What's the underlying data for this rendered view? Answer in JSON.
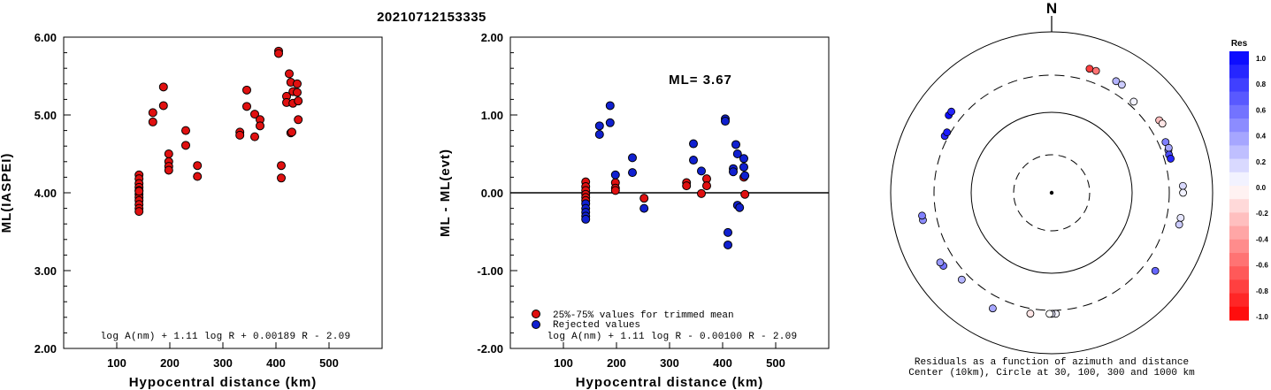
{
  "title": "20210712153335",
  "chart_data": [
    {
      "type": "scatter",
      "panel": "left",
      "ylabel": "ML(IASPEI)",
      "xlabel": "Hypocentral distance (km)",
      "xlim": [
        0,
        600
      ],
      "ylim": [
        2.0,
        6.0
      ],
      "xticks": [
        "100",
        "200",
        "300",
        "400",
        "500"
      ],
      "yticks": [
        "2.00",
        "3.00",
        "4.00",
        "5.00",
        "6.00"
      ],
      "formula": "log A(nm) + 1.11 log R + 0.00189 R - 2.09",
      "series": [
        {
          "color": "#e01010",
          "points": [
            [
              142,
              4.23
            ],
            [
              142,
              4.18
            ],
            [
              142,
              4.12
            ],
            [
              142,
              4.07
            ],
            [
              142,
              4.03
            ],
            [
              142,
              3.98
            ],
            [
              142,
              3.94
            ],
            [
              142,
              3.9
            ],
            [
              142,
              3.85
            ],
            [
              142,
              3.8
            ],
            [
              142,
              3.76
            ],
            [
              142,
              4.02
            ],
            [
              168,
              5.03
            ],
            [
              168,
              4.91
            ],
            [
              188,
              5.36
            ],
            [
              188,
              5.12
            ],
            [
              198,
              4.5
            ],
            [
              198,
              4.4
            ],
            [
              198,
              4.34
            ],
            [
              198,
              4.29
            ],
            [
              230,
              4.8
            ],
            [
              230,
              4.61
            ],
            [
              252,
              4.35
            ],
            [
              252,
              4.21
            ],
            [
              332,
              4.78
            ],
            [
              332,
              4.74
            ],
            [
              345,
              5.32
            ],
            [
              345,
              5.11
            ],
            [
              360,
              5.01
            ],
            [
              360,
              4.72
            ],
            [
              370,
              4.94
            ],
            [
              370,
              4.86
            ],
            [
              405,
              5.82
            ],
            [
              405,
              5.79
            ],
            [
              410,
              4.35
            ],
            [
              410,
              4.19
            ],
            [
              420,
              5.24
            ],
            [
              420,
              5.16
            ],
            [
              425,
              5.53
            ],
            [
              428,
              5.42
            ],
            [
              428,
              4.77
            ],
            [
              432,
              5.3
            ],
            [
              432,
              5.15
            ],
            [
              440,
              5.4
            ],
            [
              440,
              5.29
            ],
            [
              442,
              5.18
            ],
            [
              442,
              4.94
            ],
            [
              430,
              4.78
            ]
          ]
        }
      ]
    },
    {
      "type": "scatter",
      "panel": "middle",
      "ylabel": "ML - ML(evt)",
      "xlabel": "Hypocentral distance (km)",
      "xlim": [
        0,
        600
      ],
      "ylim": [
        -2.0,
        2.0
      ],
      "xticks": [
        "100",
        "200",
        "300",
        "400",
        "500"
      ],
      "yticks": [
        "-2.00",
        "-1.00",
        "0.00",
        "1.00",
        "2.00"
      ],
      "annotation": "ML= 3.67",
      "formula": "log A(nm) + 1.11 log R - 0.00100 R - 2.09",
      "legend": [
        "25%-75% values for trimmed mean",
        "Rejected values"
      ],
      "series": [
        {
          "name": "25%-75% values for trimmed mean",
          "color": "#e01010",
          "points": [
            [
              142,
              0.14
            ],
            [
              142,
              0.08
            ],
            [
              142,
              0.03
            ],
            [
              142,
              -0.02
            ],
            [
              142,
              -0.06
            ],
            [
              142,
              -0.1
            ],
            [
              198,
              0.13
            ],
            [
              198,
              0.06
            ],
            [
              198,
              0.03
            ],
            [
              252,
              -0.07
            ],
            [
              332,
              0.13
            ],
            [
              332,
              0.09
            ],
            [
              360,
              -0.01
            ],
            [
              370,
              0.18
            ],
            [
              370,
              0.09
            ],
            [
              440,
              0.2
            ],
            [
              442,
              -0.02
            ]
          ]
        },
        {
          "name": "Rejected values",
          "color": "#1020d0",
          "points": [
            [
              142,
              -0.14
            ],
            [
              142,
              -0.2
            ],
            [
              142,
              -0.25
            ],
            [
              142,
              -0.3
            ],
            [
              142,
              -0.34
            ],
            [
              168,
              0.86
            ],
            [
              168,
              0.75
            ],
            [
              188,
              1.12
            ],
            [
              188,
              0.9
            ],
            [
              198,
              0.23
            ],
            [
              230,
              0.45
            ],
            [
              230,
              0.26
            ],
            [
              252,
              -0.2
            ],
            [
              345,
              0.63
            ],
            [
              345,
              0.42
            ],
            [
              360,
              0.28
            ],
            [
              405,
              0.95
            ],
            [
              405,
              0.92
            ],
            [
              410,
              -0.51
            ],
            [
              410,
              -0.67
            ],
            [
              420,
              0.31
            ],
            [
              420,
              0.27
            ],
            [
              425,
              0.62
            ],
            [
              428,
              0.5
            ],
            [
              428,
              -0.16
            ],
            [
              432,
              -0.19
            ],
            [
              440,
              0.44
            ],
            [
              440,
              0.33
            ],
            [
              442,
              0.22
            ]
          ]
        }
      ]
    },
    {
      "type": "scatter",
      "panel": "polar",
      "north_label": "N",
      "caption_line1": "Residuals as a function of azimuth and distance",
      "caption_line2": "Center (10km), Circle at 30, 100, 300 and 1000 km",
      "colorbar": {
        "title": "Res",
        "labels": [
          "1.0",
          "0.8",
          "0.6",
          "0.4",
          "0.2",
          "0.0",
          "-0.2",
          "-0.4",
          "-0.6",
          "-0.8",
          "-1.0"
        ],
        "stops": [
          "#0000ff",
          "#3040ff",
          "#5a6aff",
          "#8590ff",
          "#b3bbff",
          "#ffffff",
          "#ffc8c8",
          "#ffa0a0",
          "#ff7070",
          "#ff4040",
          "#ff0000"
        ]
      },
      "points": [
        {
          "az": 17,
          "dist": 420,
          "res": -0.75
        },
        {
          "az": 20,
          "dist": 420,
          "res": -0.55
        },
        {
          "az": 30,
          "dist": 410,
          "res": 0.3
        },
        {
          "az": 33,
          "dist": 410,
          "res": 0.2
        },
        {
          "az": 42,
          "dist": 345,
          "res": 0.05
        },
        {
          "az": 56,
          "dist": 420,
          "res": -0.25
        },
        {
          "az": 58,
          "dist": 430,
          "res": -0.1
        },
        {
          "az": 66,
          "dist": 365,
          "res": 0.5
        },
        {
          "az": 70,
          "dist": 360,
          "res": 0.45
        },
        {
          "az": 69,
          "dist": 372,
          "res": 0.35
        },
        {
          "az": 72,
          "dist": 352,
          "res": 0.7
        },
        {
          "az": 74,
          "dist": 356,
          "res": 0.85
        },
        {
          "az": 87,
          "dist": 440,
          "res": 0.15
        },
        {
          "az": 90,
          "dist": 440,
          "res": 0.05
        },
        {
          "az": 101,
          "dist": 440,
          "res": 0.1
        },
        {
          "az": 104,
          "dist": 440,
          "res": 0.2
        },
        {
          "az": 127,
          "dist": 420,
          "res": 0.6
        },
        {
          "az": 178,
          "dist": 330,
          "res": 0.05
        },
        {
          "az": 180,
          "dist": 330,
          "res": 0.1
        },
        {
          "az": 181,
          "dist": 330,
          "res": 0.0
        },
        {
          "az": 190,
          "dist": 345,
          "res": -0.1
        },
        {
          "az": 207,
          "dist": 420,
          "res": 0.35
        },
        {
          "az": 226,
          "dist": 368,
          "res": 0.3
        },
        {
          "az": 236,
          "dist": 430,
          "res": 0.55
        },
        {
          "az": 238,
          "dist": 440,
          "res": 0.4
        },
        {
          "az": 258,
          "dist": 442,
          "res": 0.45
        },
        {
          "az": 260,
          "dist": 442,
          "res": 0.5
        },
        {
          "az": 298,
          "dist": 330,
          "res": 0.85
        },
        {
          "az": 300,
          "dist": 328,
          "res": 0.9
        },
        {
          "az": 307,
          "dist": 410,
          "res": 0.95
        },
        {
          "az": 309,
          "dist": 412,
          "res": 0.85
        }
      ]
    }
  ]
}
